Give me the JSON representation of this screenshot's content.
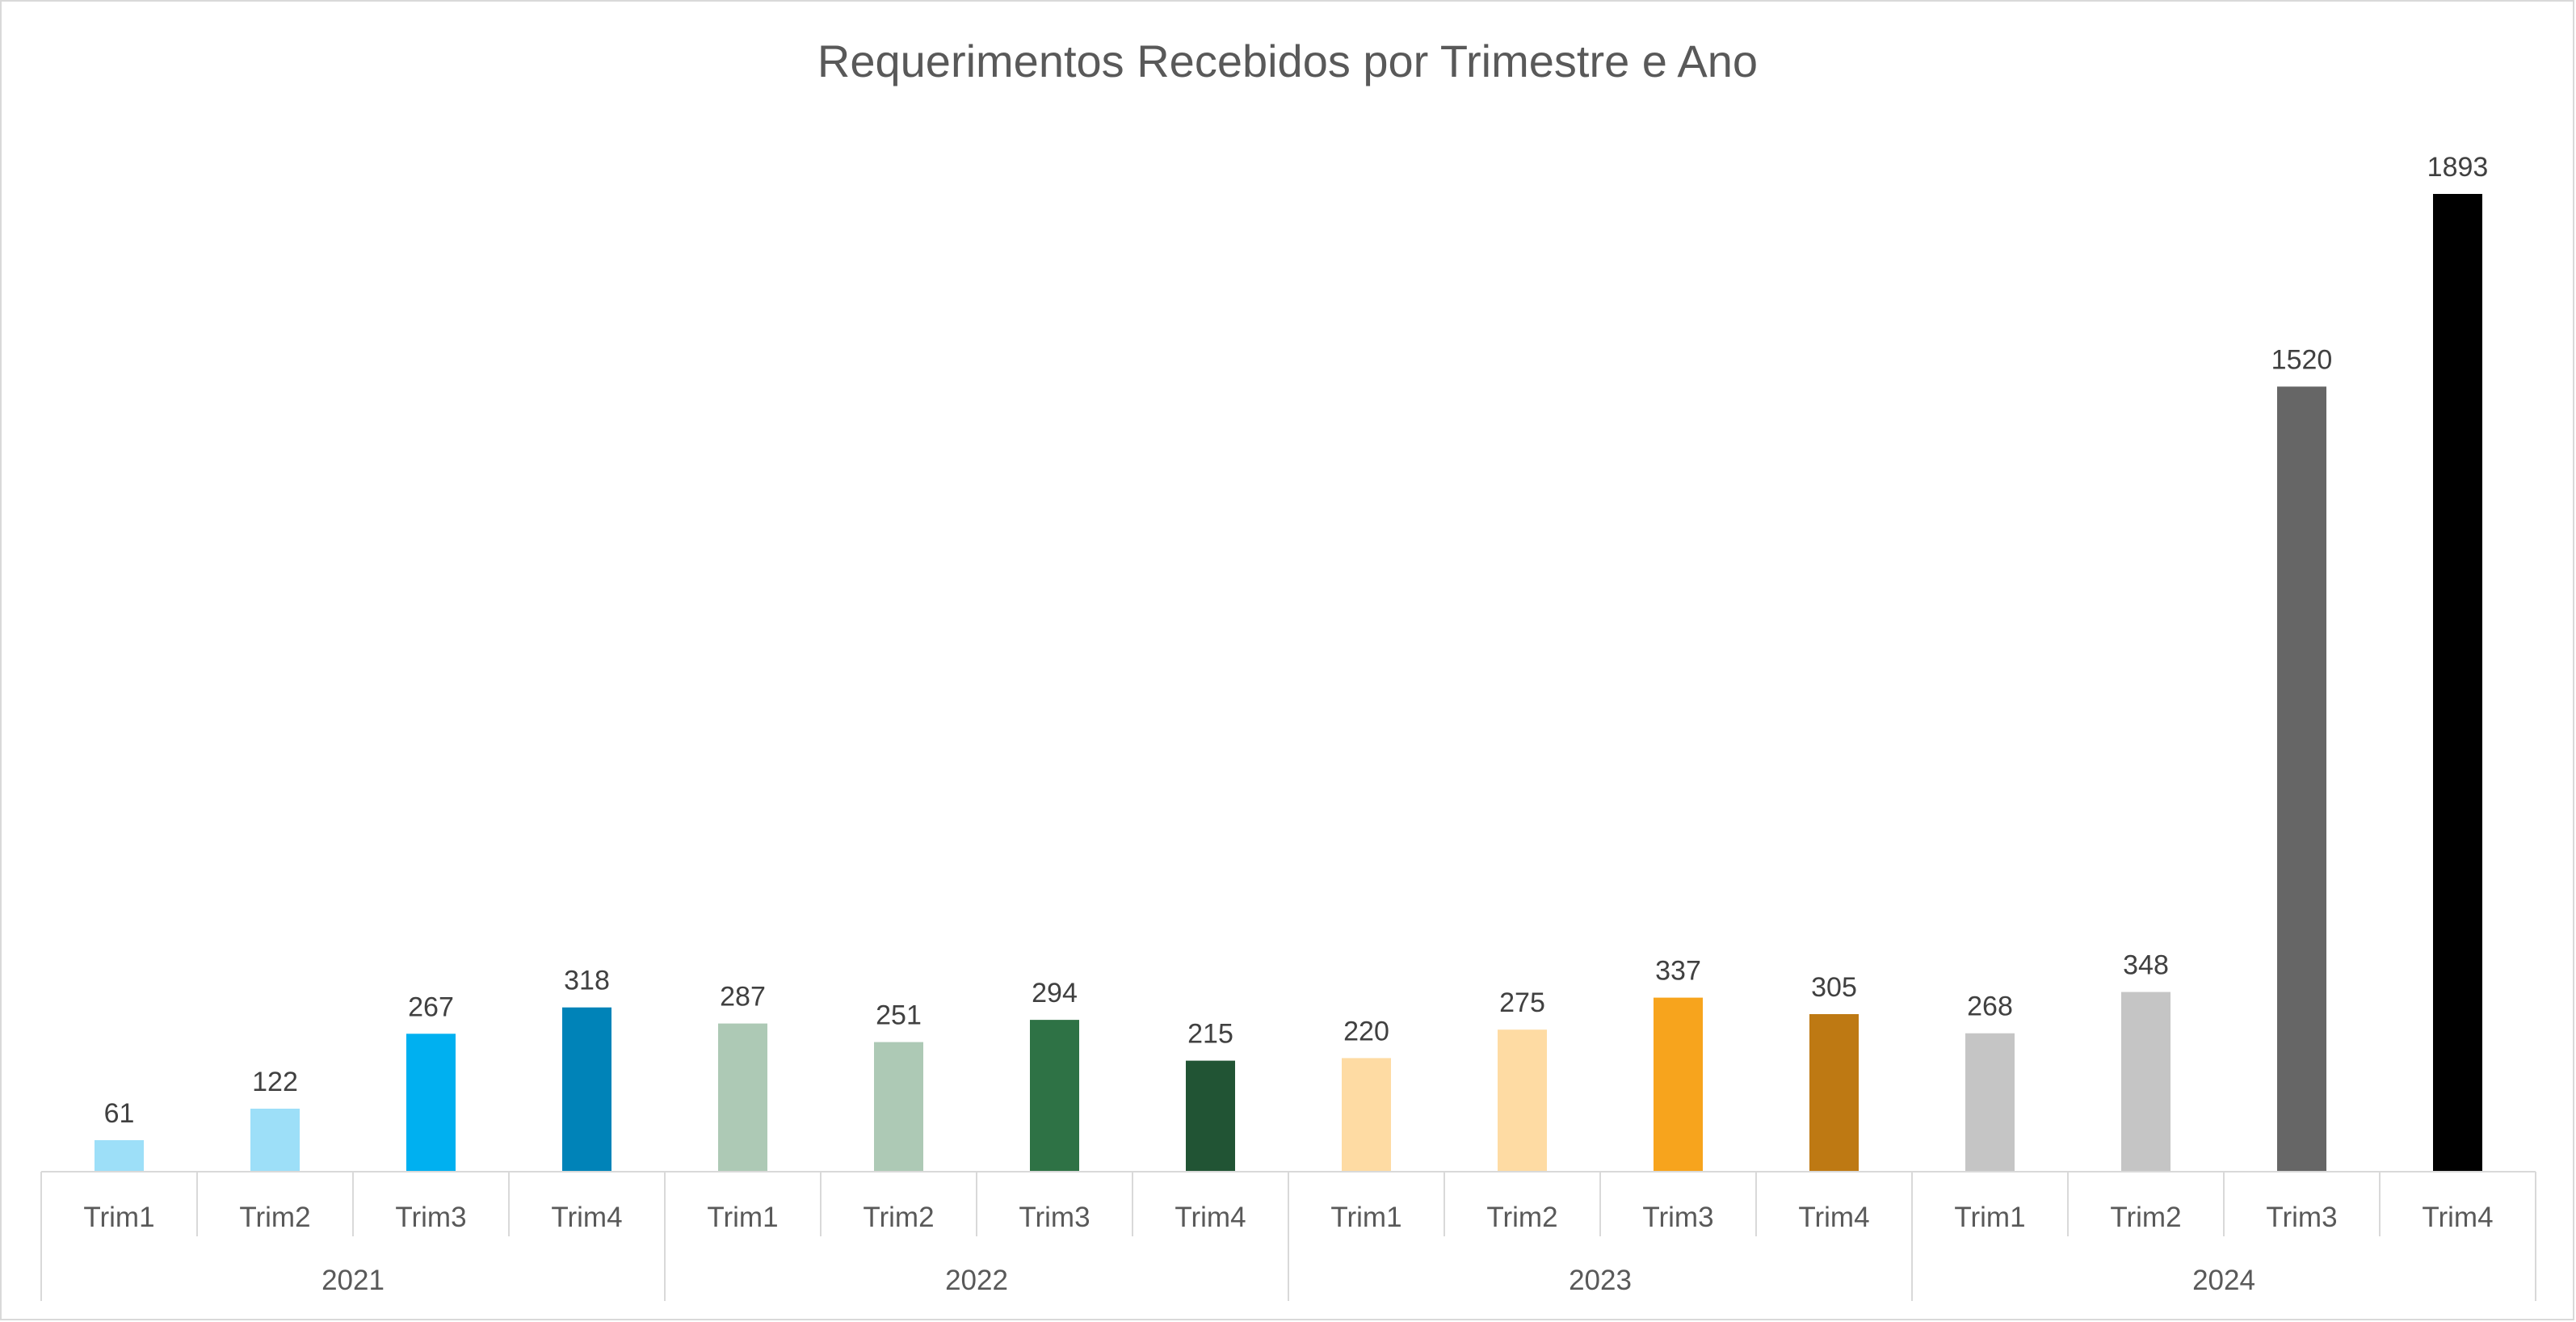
{
  "chart_data": {
    "type": "bar",
    "title": "Requerimentos Recebidos por Trimestre e Ano",
    "xlabel": "",
    "ylabel": "",
    "ylim": [
      0,
      1893
    ],
    "grid": false,
    "legend": "none",
    "groups": [
      "2021",
      "2022",
      "2023",
      "2024"
    ],
    "categories": [
      "Trim1",
      "Trim2",
      "Trim3",
      "Trim4",
      "Trim1",
      "Trim2",
      "Trim3",
      "Trim4",
      "Trim1",
      "Trim2",
      "Trim3",
      "Trim4",
      "Trim1",
      "Trim2",
      "Trim3",
      "Trim4"
    ],
    "values": [
      61,
      122,
      267,
      318,
      287,
      251,
      294,
      215,
      220,
      275,
      337,
      305,
      268,
      348,
      1520,
      1893
    ],
    "data_labels": [
      "61",
      "122",
      "267",
      "318",
      "287",
      "251",
      "294",
      "215",
      "220",
      "275",
      "337",
      "305",
      "268",
      "348",
      "1520",
      "1893"
    ],
    "colors": [
      "#9ddff8",
      "#9ddff8",
      "#00b0f0",
      "#0083b8",
      "#adc9b5",
      "#adc9b5",
      "#2e7245",
      "#215434",
      "#fedba3",
      "#fedba3",
      "#f7a41d",
      "#be7913",
      "#c5c5c5",
      "#c5c5c5",
      "#666666",
      "#000000"
    ],
    "axis_color": "#d9d9d9"
  }
}
